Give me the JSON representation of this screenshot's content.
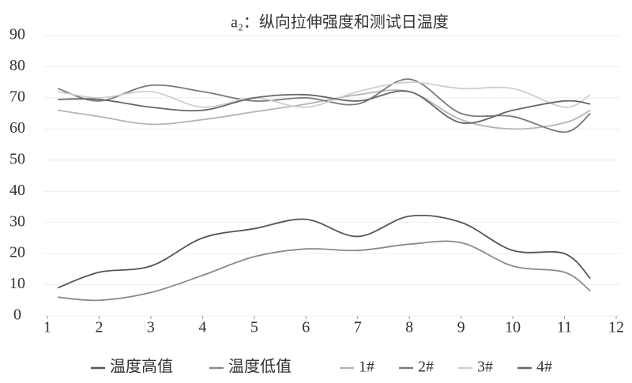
{
  "chart_data": {
    "type": "line",
    "title": "a₂：纵向拉伸强度和测试日温度",
    "x": [
      1.2,
      2,
      3,
      4,
      5,
      6,
      7,
      8,
      9,
      10,
      11,
      11.5
    ],
    "series": [
      {
        "name": "温度高值",
        "color": "#555555",
        "values": [
          9,
          14,
          16,
          25,
          28,
          31,
          25.5,
          32,
          30,
          21,
          20,
          12
        ]
      },
      {
        "name": "温度低值",
        "color": "#8a8a8a",
        "values": [
          6,
          5,
          7.5,
          13,
          19,
          21.5,
          21,
          23,
          23.5,
          16,
          14,
          8
        ]
      },
      {
        "name": "1#",
        "color": "#b5b5b5",
        "values": [
          66,
          64,
          61.5,
          63,
          65.5,
          68,
          71,
          72,
          63,
          60,
          62,
          66
        ]
      },
      {
        "name": "2#",
        "color": "#7a7a7a",
        "values": [
          73,
          69,
          74,
          72,
          69,
          70,
          68,
          76,
          65,
          64,
          59,
          65
        ]
      },
      {
        "name": "3#",
        "color": "#cfcfcf",
        "values": [
          72,
          70,
          72,
          67,
          70,
          67,
          72,
          75,
          73,
          73,
          67,
          71
        ]
      },
      {
        "name": "4#",
        "color": "#666666",
        "values": [
          69.5,
          69.5,
          67,
          66,
          70,
          71,
          69,
          72,
          62,
          66,
          69,
          68
        ]
      }
    ],
    "xlim": [
      1,
      12
    ],
    "xticks": [
      1,
      2,
      3,
      4,
      5,
      6,
      7,
      8,
      9,
      10,
      11,
      12
    ],
    "ylim": [
      0,
      90
    ],
    "yticks": [
      0,
      10,
      20,
      30,
      40,
      50,
      60,
      70,
      80,
      90
    ],
    "grid": true
  }
}
